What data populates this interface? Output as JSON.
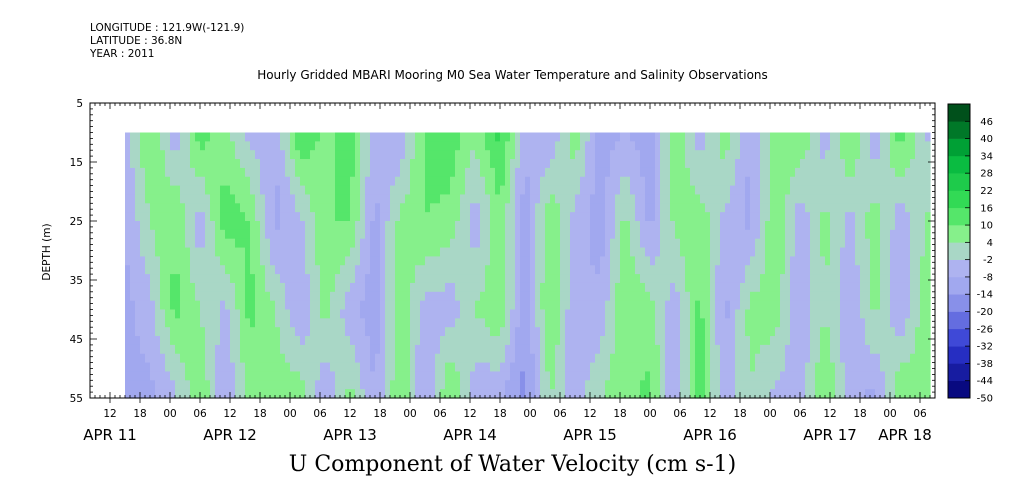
{
  "header": {
    "longitude": "LONGITUDE : 121.9W(-121.9)",
    "latitude": "LATITUDE : 36.8N",
    "year": "YEAR : 2011",
    "title": "Hourly Gridded MBARI Mooring M0 Sea Water Temperature and Salinity Observations"
  },
  "colors": {
    "positive_strong": "#00b43c",
    "positive_mid": "#3ce15a",
    "positive_light": "#9ef59b",
    "negative_light": "#b4b9f0",
    "negative_mid": "#9aa2ee",
    "negative_strong": "#2d37d2",
    "frame": "#000000"
  },
  "chart_data": {
    "type": "heatmap",
    "title": "Hourly Gridded MBARI Mooring M0 Sea Water Temperature and Salinity Observations",
    "xlabel": "U Component of Water Velocity (cm s-1)",
    "ylabel": "DEPTH (m)",
    "x_unit": "hours since 2011-04-11 00:00",
    "xlim": [
      8,
      177
    ],
    "ylim": [
      55,
      5
    ],
    "data_xlim": [
      15,
      176
    ],
    "data_ylim": [
      10,
      55
    ],
    "y_ticks": [
      5,
      15,
      25,
      35,
      45,
      55
    ],
    "x_hour_ticks": [
      {
        "t": 12,
        "label": "12"
      },
      {
        "t": 18,
        "label": "18"
      },
      {
        "t": 24,
        "label": "00"
      },
      {
        "t": 30,
        "label": "06"
      },
      {
        "t": 36,
        "label": "12"
      },
      {
        "t": 42,
        "label": "18"
      },
      {
        "t": 48,
        "label": "00"
      },
      {
        "t": 54,
        "label": "06"
      },
      {
        "t": 60,
        "label": "12"
      },
      {
        "t": 66,
        "label": "18"
      },
      {
        "t": 72,
        "label": "00"
      },
      {
        "t": 78,
        "label": "06"
      },
      {
        "t": 84,
        "label": "12"
      },
      {
        "t": 90,
        "label": "18"
      },
      {
        "t": 96,
        "label": "00"
      },
      {
        "t": 102,
        "label": "06"
      },
      {
        "t": 108,
        "label": "12"
      },
      {
        "t": 114,
        "label": "18"
      },
      {
        "t": 120,
        "label": "00"
      },
      {
        "t": 126,
        "label": "06"
      },
      {
        "t": 132,
        "label": "12"
      },
      {
        "t": 138,
        "label": "18"
      },
      {
        "t": 144,
        "label": "00"
      },
      {
        "t": 150,
        "label": "06"
      },
      {
        "t": 156,
        "label": "12"
      },
      {
        "t": 162,
        "label": "18"
      },
      {
        "t": 168,
        "label": "00"
      },
      {
        "t": 174,
        "label": "06"
      }
    ],
    "date_labels": [
      {
        "t": 12,
        "label": "APR 11"
      },
      {
        "t": 36,
        "label": "APR 12"
      },
      {
        "t": 60,
        "label": "APR 13"
      },
      {
        "t": 84,
        "label": "APR 14"
      },
      {
        "t": 108,
        "label": "APR 15"
      },
      {
        "t": 132,
        "label": "APR 16"
      },
      {
        "t": 156,
        "label": "APR 17"
      },
      {
        "t": 171,
        "label": "APR 18"
      }
    ],
    "colorbar": {
      "min": -50,
      "max": 52,
      "step": 6,
      "labels": [
        "46",
        "40",
        "34",
        "28",
        "22",
        "16",
        "10",
        "4",
        "-2",
        "-8",
        "-14",
        "-20",
        "-26",
        "-32",
        "-38",
        "-44",
        "-50"
      ]
    },
    "field_columns": [
      {
        "t": 15,
        "v": [
          -6,
          -8,
          -10,
          -12
        ]
      },
      {
        "t": 20,
        "v": [
          12,
          4,
          -4,
          -10
        ]
      },
      {
        "t": 25,
        "v": [
          -6,
          10,
          12,
          -4
        ]
      },
      {
        "t": 30,
        "v": [
          14,
          -6,
          4,
          10
        ]
      },
      {
        "t": 35,
        "v": [
          6,
          14,
          -4,
          -8
        ]
      },
      {
        "t": 40,
        "v": [
          -4,
          10,
          12,
          6
        ]
      },
      {
        "t": 45,
        "v": [
          -8,
          -10,
          4,
          8
        ]
      },
      {
        "t": 50,
        "v": [
          16,
          -4,
          -8,
          8
        ]
      },
      {
        "t": 55,
        "v": [
          8,
          10,
          6,
          -8
        ]
      },
      {
        "t": 60,
        "v": [
          14,
          10,
          -6,
          6
        ]
      },
      {
        "t": 65,
        "v": [
          -6,
          -10,
          -12,
          -8
        ]
      },
      {
        "t": 70,
        "v": [
          -8,
          6,
          8,
          10
        ]
      },
      {
        "t": 75,
        "v": [
          12,
          10,
          -4,
          -10
        ]
      },
      {
        "t": 80,
        "v": [
          14,
          8,
          -6,
          12
        ]
      },
      {
        "t": 85,
        "v": [
          6,
          -6,
          4,
          -6
        ]
      },
      {
        "t": 90,
        "v": [
          18,
          8,
          10,
          -8
        ]
      },
      {
        "t": 95,
        "v": [
          -6,
          -12,
          -14,
          -16
        ]
      },
      {
        "t": 100,
        "v": [
          -8,
          10,
          12,
          4
        ]
      },
      {
        "t": 105,
        "v": [
          8,
          -4,
          -8,
          -6
        ]
      },
      {
        "t": 110,
        "v": [
          -10,
          -12,
          -6,
          4
        ]
      },
      {
        "t": 115,
        "v": [
          -8,
          6,
          10,
          8
        ]
      },
      {
        "t": 120,
        "v": [
          -12,
          -10,
          6,
          12
        ]
      },
      {
        "t": 125,
        "v": [
          10,
          6,
          -6,
          -8
        ]
      },
      {
        "t": 130,
        "v": [
          -6,
          8,
          12,
          14
        ]
      },
      {
        "t": 135,
        "v": [
          8,
          -4,
          -10,
          -6
        ]
      },
      {
        "t": 140,
        "v": [
          -8,
          -10,
          6,
          4
        ]
      },
      {
        "t": 145,
        "v": [
          6,
          10,
          8,
          -4
        ]
      },
      {
        "t": 150,
        "v": [
          10,
          -6,
          -8,
          -6
        ]
      },
      {
        "t": 155,
        "v": [
          -6,
          6,
          4,
          12
        ]
      },
      {
        "t": 160,
        "v": [
          12,
          -4,
          -8,
          -6
        ]
      },
      {
        "t": 165,
        "v": [
          -8,
          8,
          6,
          -10
        ]
      },
      {
        "t": 170,
        "v": [
          14,
          -6,
          -8,
          10
        ]
      },
      {
        "t": 176,
        "v": [
          -4,
          6,
          10,
          8
        ]
      }
    ],
    "field_depths": [
      10,
      25,
      40,
      55
    ]
  }
}
